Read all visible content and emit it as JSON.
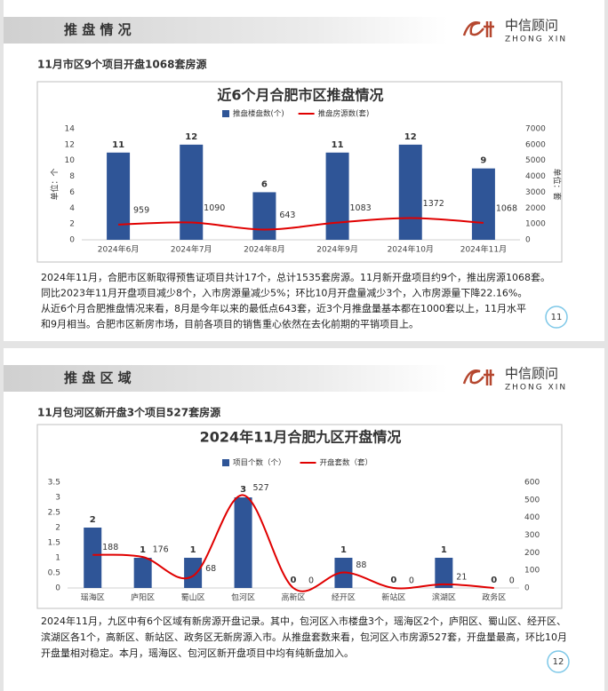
{
  "slides": [
    {
      "header": "推 盘 情 况",
      "logo": {
        "name": "中信顾问",
        "pinyin": "ZHONG XIN"
      },
      "subtitle": "11月市区9个项目开盘1068套房源",
      "chart": {
        "type": "combo",
        "title": "近6个月合肥市区推盘情况",
        "categories": [
          "2024年6月",
          "2024年7月",
          "2024年8月",
          "2024年9月",
          "2024年10月",
          "2024年11月"
        ],
        "series": [
          {
            "name": "推盘楼盘数(个)",
            "color": "#2f5597",
            "type": "bar",
            "values": [
              11,
              12,
              6,
              11,
              12,
              9
            ]
          },
          {
            "name": "推盘房源数(套)",
            "color": "#e00000",
            "type": "line",
            "axis": "y2",
            "values": [
              959,
              1090,
              643,
              1083,
              1372,
              1068
            ]
          }
        ],
        "ylim": [
          0,
          14
        ],
        "yticks": [
          0,
          2,
          4,
          6,
          8,
          10,
          12,
          14
        ],
        "y2lim": [
          0,
          7000
        ],
        "y2ticks": [
          0,
          1000,
          2000,
          3000,
          4000,
          5000,
          6000,
          7000
        ],
        "ylabel": "单位：个",
        "y2label": "单位：套"
      },
      "text": [
        "2024年11月，合肥市区新取得预售证项目共计17个，总计1535套房源。11月新开盘项目约9个，推出房源1068套。",
        "同比2023年11月开盘项目减少8个，入市房源量减少5%；环比10月开盘量减少3个，入市房源量下降22.16%。",
        "从近6个月合肥推盘情况来看，8月是今年以来的最低点643套，近3个月推盘量基本都在1000套以上，11月水平",
        "和9月相当。合肥市区新房市场，目前各项目的销售重心依然在去化前期的平销项目上。"
      ],
      "page": "11"
    },
    {
      "header": "推 盘 区 域",
      "logo": {
        "name": "中信顾问",
        "pinyin": "ZHONG XIN"
      },
      "subtitle": "11月包河区新开盘3个项目527套房源",
      "chart": {
        "type": "combo",
        "title": "2024年11月合肥九区开盘情况",
        "categories": [
          "瑶海区",
          "庐阳区",
          "蜀山区",
          "包河区",
          "高新区",
          "经开区",
          "新站区",
          "滨湖区",
          "政务区"
        ],
        "series": [
          {
            "name": "项目个数（个）",
            "color": "#2f5597",
            "type": "bar",
            "values": [
              2,
              1,
              1,
              3,
              0,
              1,
              0,
              1,
              0
            ]
          },
          {
            "name": "开盘套数（套）",
            "color": "#e00000",
            "type": "line",
            "axis": "y2",
            "values": [
              188,
              176,
              68,
              527,
              0,
              88,
              0,
              21,
              0
            ]
          }
        ],
        "ylim": [
          0,
          3.5
        ],
        "yticks": [
          0,
          0.5,
          1,
          1.5,
          2,
          2.5,
          3,
          3.5
        ],
        "y2lim": [
          0,
          600
        ],
        "y2ticks": [
          0,
          100,
          200,
          300,
          400,
          500,
          600
        ]
      },
      "text": [
        "2024年11月，九区中有6个区域有新房源开盘记录。其中，包河区入市楼盘3个，瑶海区2个，庐阳区、蜀山区、经开区、",
        "滨湖区各1个，高新区、新站区、政务区无新房源入市。从推盘套数来看，包河区入市房源527套，开盘量最高，环比10月",
        "开盘量相对稳定。本月，瑶海区、包河区新开盘项目中均有纯新盘加入。"
      ],
      "page": "12"
    }
  ]
}
